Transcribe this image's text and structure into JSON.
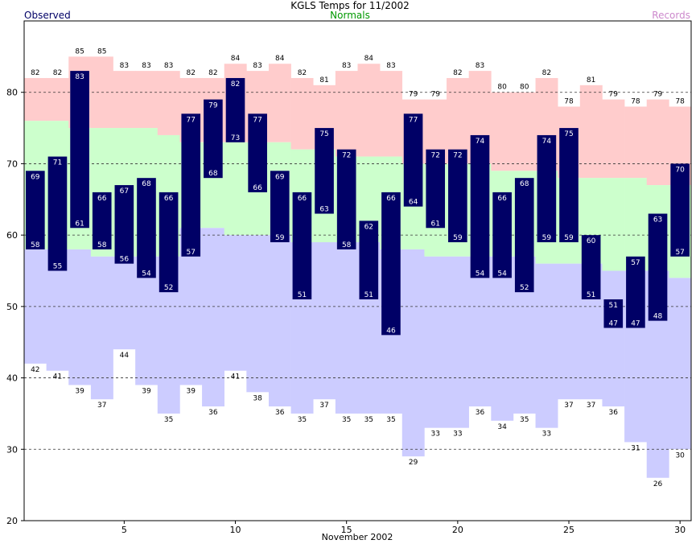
{
  "chart_data": {
    "type": "bar",
    "title": "KGLS Temps for 11/2002",
    "xlabel": "November 2002",
    "ylabel": "",
    "xlim": [
      0.5,
      30.5
    ],
    "ylim": [
      20,
      90
    ],
    "grid": "dashed horizontal at 30, 40, 50, 60, 70, 80",
    "legend": [
      "Observed",
      "Normals",
      "Records"
    ],
    "y_ticks": [
      "20",
      "30",
      "40",
      "50",
      "60",
      "70",
      "80"
    ],
    "x_ticks": [
      "5",
      "10",
      "15",
      "20",
      "25",
      "30"
    ],
    "x_tick_values": [
      5,
      10,
      15,
      20,
      25,
      30
    ],
    "days": [
      1,
      2,
      3,
      4,
      5,
      6,
      7,
      8,
      9,
      10,
      11,
      12,
      13,
      14,
      15,
      16,
      17,
      18,
      19,
      20,
      21,
      22,
      23,
      24,
      25,
      26,
      27,
      28,
      29,
      30
    ],
    "record_high": [
      82,
      82,
      85,
      85,
      83,
      83,
      83,
      82,
      82,
      84,
      83,
      84,
      82,
      81,
      83,
      84,
      83,
      79,
      79,
      82,
      83,
      80,
      80,
      82,
      78,
      81,
      79,
      78,
      79,
      78
    ],
    "normal_high": [
      76,
      76,
      75,
      75,
      75,
      75,
      74,
      73,
      73,
      73,
      73,
      73,
      72,
      72,
      71,
      71,
      71,
      70,
      70,
      70,
      70,
      69,
      69,
      69,
      68,
      68,
      68,
      68,
      67,
      67
    ],
    "normal_low": [
      58,
      58,
      58,
      57,
      57,
      57,
      57,
      61,
      61,
      60,
      60,
      60,
      59,
      59,
      59,
      59,
      58,
      58,
      57,
      57,
      57,
      57,
      57,
      56,
      56,
      56,
      55,
      55,
      55,
      54
    ],
    "record_low": [
      42,
      41,
      39,
      37,
      44,
      39,
      35,
      39,
      36,
      41,
      38,
      36,
      35,
      37,
      35,
      35,
      35,
      29,
      33,
      33,
      36,
      34,
      35,
      33,
      37,
      37,
      36,
      31,
      26,
      30
    ],
    "observed_high": [
      69,
      71,
      83,
      66,
      67,
      68,
      66,
      77,
      79,
      82,
      77,
      69,
      66,
      75,
      72,
      62,
      66,
      77,
      72,
      72,
      74,
      66,
      68,
      74,
      75,
      60,
      51,
      57,
      63,
      70
    ],
    "observed_low": [
      58,
      55,
      61,
      58,
      56,
      54,
      52,
      57,
      68,
      73,
      66,
      59,
      51,
      63,
      58,
      51,
      46,
      64,
      61,
      59,
      54,
      54,
      52,
      59,
      59,
      51,
      47,
      47,
      48,
      57
    ],
    "colors": {
      "observed": "#000066",
      "normals": "#ccffcc",
      "records_high": "#ffcccc",
      "records_low": "#ccccff",
      "observed_legend": "#000066",
      "normals_legend": "#009900",
      "records_legend": "#cc88cc"
    }
  }
}
